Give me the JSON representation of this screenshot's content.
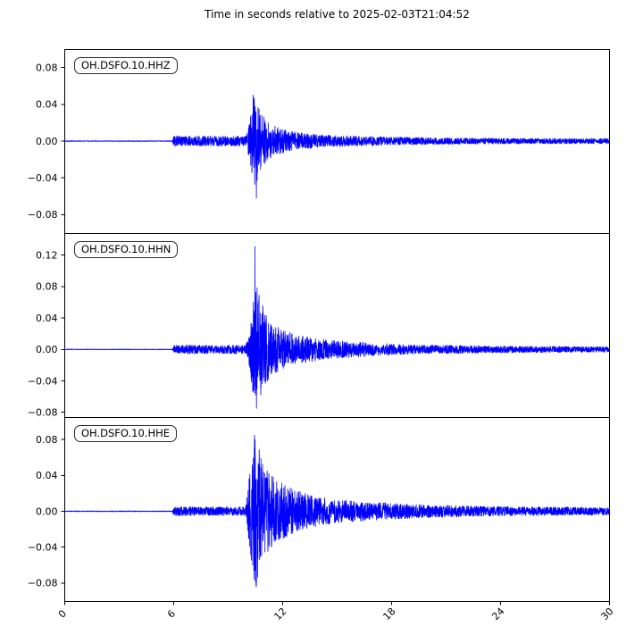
{
  "chart_data": {
    "type": "line",
    "title": "Time in seconds relative to 2025-02-03T21:04:52",
    "xlabel": "",
    "ylabel": "",
    "x_range": [
      0,
      30
    ],
    "x_ticks": [
      0,
      6,
      12,
      18,
      24,
      30
    ],
    "line_color": "#0000ff",
    "legend_position": "none",
    "grid": false,
    "traces": [
      {
        "label": "OH.DSFO.10.HHZ",
        "ylim": [
          -0.1,
          0.1
        ],
        "y_ticks": [
          0.08,
          0.04,
          0,
          -0.04,
          -0.08
        ],
        "peak_positive": 0.05,
        "peak_negative": -0.062,
        "quiet_until_s": 6,
        "onset_s": 10.2,
        "noise_seed": 101,
        "envelope": [
          [
            0,
            0.0004
          ],
          [
            5.92,
            0.0004
          ],
          [
            6.0,
            0.0055
          ],
          [
            9.95,
            0.0055
          ],
          [
            10.15,
            0.018
          ],
          [
            10.45,
            0.055
          ],
          [
            10.75,
            0.032
          ],
          [
            11.2,
            0.02
          ],
          [
            12.0,
            0.013
          ],
          [
            13.0,
            0.009
          ],
          [
            14.5,
            0.0065
          ],
          [
            17.0,
            0.005
          ],
          [
            20.0,
            0.0038
          ],
          [
            24.0,
            0.003
          ],
          [
            30,
            0.0028
          ]
        ],
        "spikes": [
          [
            10.38,
            0.05
          ],
          [
            10.55,
            -0.062
          ]
        ]
      },
      {
        "label": "OH.DSFO.10.HHN",
        "ylim": [
          -0.086,
          0.148
        ],
        "y_ticks": [
          0.12,
          0.08,
          0.04,
          0,
          -0.04,
          -0.08
        ],
        "peak_positive": 0.131,
        "peak_negative": -0.075,
        "quiet_until_s": 6,
        "onset_s": 10.2,
        "noise_seed": 202,
        "envelope": [
          [
            0,
            0.0004
          ],
          [
            5.92,
            0.0004
          ],
          [
            6.0,
            0.0055
          ],
          [
            9.95,
            0.0055
          ],
          [
            10.2,
            0.025
          ],
          [
            10.5,
            0.09
          ],
          [
            10.85,
            0.055
          ],
          [
            11.3,
            0.035
          ],
          [
            12.0,
            0.025
          ],
          [
            13.0,
            0.018
          ],
          [
            14.5,
            0.012
          ],
          [
            16.5,
            0.009
          ],
          [
            19.0,
            0.006
          ],
          [
            23.0,
            0.0045
          ],
          [
            30,
            0.0035
          ]
        ],
        "spikes": [
          [
            10.47,
            0.131
          ],
          [
            10.56,
            -0.075
          ],
          [
            10.9,
            0.056
          ]
        ]
      },
      {
        "label": "OH.DSFO.10.HHE",
        "ylim": [
          -0.1,
          0.105
        ],
        "y_ticks": [
          0.08,
          0.04,
          0,
          -0.04,
          -0.08
        ],
        "peak_positive": 0.085,
        "peak_negative": -0.082,
        "quiet_until_s": 6,
        "onset_s": 10.2,
        "noise_seed": 303,
        "envelope": [
          [
            0,
            0.0004
          ],
          [
            5.92,
            0.0004
          ],
          [
            6.0,
            0.005
          ],
          [
            9.95,
            0.005
          ],
          [
            10.2,
            0.045
          ],
          [
            10.5,
            0.088
          ],
          [
            11.0,
            0.05
          ],
          [
            11.6,
            0.035
          ],
          [
            12.5,
            0.026
          ],
          [
            13.5,
            0.018
          ],
          [
            15.0,
            0.013
          ],
          [
            17.0,
            0.01
          ],
          [
            19.5,
            0.0075
          ],
          [
            23.0,
            0.0055
          ],
          [
            30,
            0.0042
          ]
        ],
        "spikes": [
          [
            10.45,
            0.085
          ],
          [
            10.55,
            -0.082
          ],
          [
            10.35,
            -0.06
          ]
        ]
      }
    ]
  }
}
